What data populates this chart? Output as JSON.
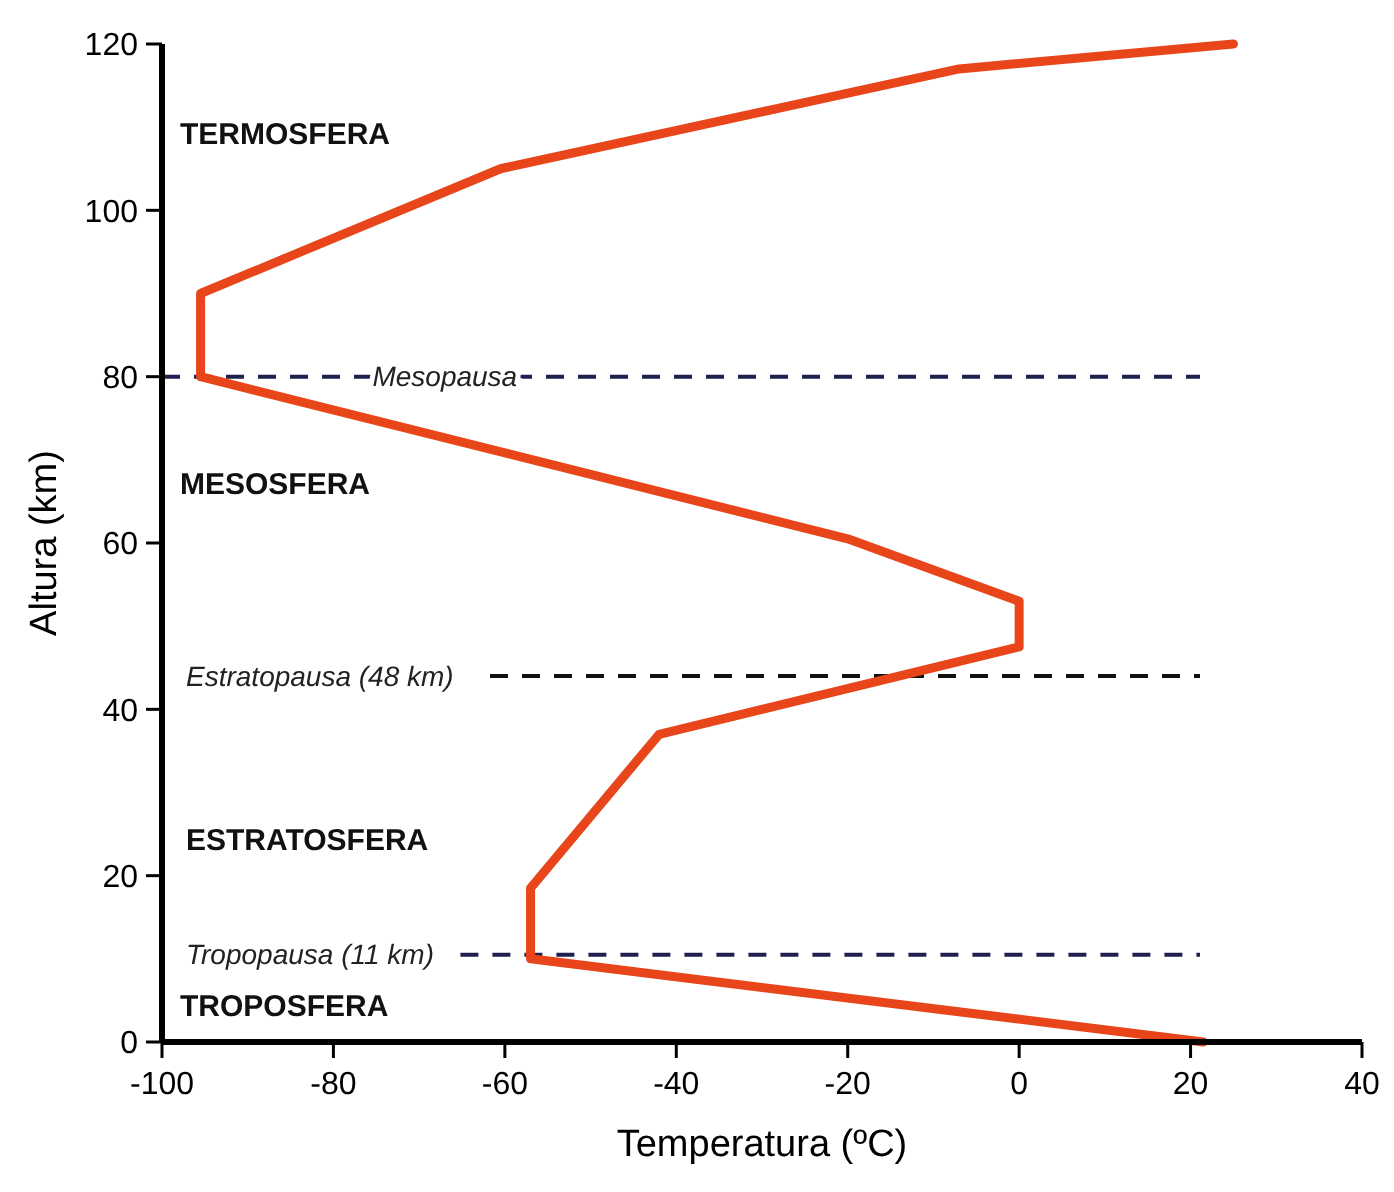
{
  "chart_data": {
    "type": "line",
    "xlabel": "Temperatura (ºC)",
    "ylabel": "Altura (km)",
    "xlim": [
      -100,
      40
    ],
    "xticks": [
      -100,
      -80,
      -60,
      -40,
      -20,
      0,
      20,
      40
    ],
    "ylim": [
      0,
      120
    ],
    "yticks": [
      0,
      20,
      40,
      60,
      80,
      100,
      120
    ],
    "grid": false,
    "marker": "none",
    "line_style": "solid",
    "series": [
      {
        "color": "#e8461a",
        "x": [
          21.5,
          -57,
          -57,
          -42,
          0,
          0,
          -20,
          -95.5,
          -95.5,
          -60.5,
          -7,
          25
        ],
        "values": [
          0,
          10,
          18.5,
          37,
          47.5,
          53,
          60.5,
          80,
          90,
          105,
          117,
          120
        ]
      }
    ],
    "ref_lines": [
      {
        "axis": "y",
        "value": 80,
        "label": "Mesopausa",
        "color": "#1f2050",
        "line_style": "dashed"
      },
      {
        "axis": "y",
        "value": 44,
        "label": "Estratopausa (48 km)",
        "color": "#111111",
        "line_style": "dashed"
      },
      {
        "axis": "y",
        "value": 10.5,
        "label": "Tropopausa (11 km)",
        "color": "#1f2050",
        "line_style": "dashed"
      }
    ],
    "annotations": [
      "TERMOSFERA",
      "MESOSFERA",
      "ESTRATOSFERA",
      "TROPOSFERA"
    ]
  }
}
